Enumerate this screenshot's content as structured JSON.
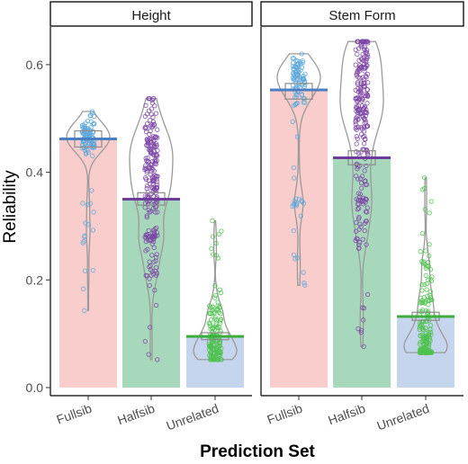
{
  "chart_data": {
    "type": "bar",
    "xlabel": "Prediction Set",
    "ylabel": "Reliability",
    "ylim": [
      -0.015,
      0.67
    ],
    "yticks": [
      0.0,
      0.2,
      0.4,
      0.6
    ],
    "ytick_labels": [
      "0.0",
      "0.2",
      "0.4",
      "0.6"
    ],
    "categories": [
      "Fullsib",
      "Halfsib",
      "Unrelated"
    ],
    "grid": false,
    "legend": "none",
    "colors": {
      "Fullsib": {
        "bar": "#F8CDCB",
        "point": "#5EA7DC",
        "mean": "#4A80C2"
      },
      "Halfsib": {
        "bar": "#A8D8BC",
        "point": "#7C47A6",
        "mean": "#6E3D9C"
      },
      "Unrelated": {
        "bar": "#C5D5EE",
        "point": "#4FC24F",
        "mean": "#3DAE3D"
      }
    },
    "panels": [
      {
        "title": "Height",
        "groups": [
          {
            "category": "Fullsib",
            "mean": 0.462,
            "box": [
              0.447,
              0.477
            ],
            "min": 0.143,
            "max": 0.513,
            "core": [
              0.44,
              0.51
            ],
            "modes": [
              0.465,
              0.283
            ],
            "n": 110
          },
          {
            "category": "Halfsib",
            "mean": 0.35,
            "box": [
              0.339,
              0.362
            ],
            "min": 0.052,
            "max": 0.537,
            "core": [
              0.2,
              0.48
            ],
            "modes": [
              0.42,
              0.28
            ],
            "n": 230
          },
          {
            "category": "Unrelated",
            "mean": 0.095,
            "box": [
              0.089,
              0.102
            ],
            "min": 0.052,
            "max": 0.31,
            "core": [
              0.055,
              0.16
            ],
            "modes": [
              0.075
            ],
            "n": 170
          }
        ]
      },
      {
        "title": "Stem Form",
        "groups": [
          {
            "category": "Fullsib",
            "mean": 0.553,
            "box": [
              0.536,
              0.565
            ],
            "min": 0.19,
            "max": 0.62,
            "core": [
              0.52,
              0.61
            ],
            "modes": [
              0.575,
              0.345
            ],
            "n": 110
          },
          {
            "category": "Halfsib",
            "mean": 0.427,
            "box": [
              0.414,
              0.44
            ],
            "min": 0.076,
            "max": 0.643,
            "core": [
              0.25,
              0.63
            ],
            "modes": [
              0.55,
              0.35
            ],
            "n": 260
          },
          {
            "category": "Unrelated",
            "mean": 0.132,
            "box": [
              0.125,
              0.14
            ],
            "min": 0.065,
            "max": 0.39,
            "core": [
              0.07,
              0.25
            ],
            "modes": [
              0.085
            ],
            "n": 170
          }
        ]
      }
    ]
  }
}
